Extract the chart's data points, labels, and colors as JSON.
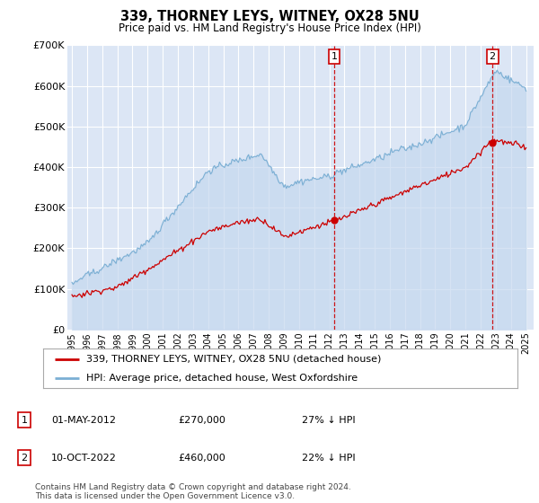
{
  "title": "339, THORNEY LEYS, WITNEY, OX28 5NU",
  "subtitle": "Price paid vs. HM Land Registry's House Price Index (HPI)",
  "legend_line1": "339, THORNEY LEYS, WITNEY, OX28 5NU (detached house)",
  "legend_line2": "HPI: Average price, detached house, West Oxfordshire",
  "annotation1_date": "01-MAY-2012",
  "annotation1_price": "£270,000",
  "annotation1_hpi": "27% ↓ HPI",
  "annotation2_date": "10-OCT-2022",
  "annotation2_price": "£460,000",
  "annotation2_hpi": "22% ↓ HPI",
  "footer": "Contains HM Land Registry data © Crown copyright and database right 2024.\nThis data is licensed under the Open Government Licence v3.0.",
  "ylim": [
    0,
    700000
  ],
  "yticks": [
    0,
    100000,
    200000,
    300000,
    400000,
    500000,
    600000,
    700000
  ],
  "plot_bg_color": "#dce6f5",
  "red_line_color": "#cc0000",
  "blue_line_color": "#7bafd4",
  "blue_fill_color": "#c5d8ee",
  "vline_color": "#cc0000",
  "marker1_year": 2012.33,
  "marker1_y": 270000,
  "marker2_year": 2022.78,
  "marker2_y": 460000,
  "xmin": 1995.0,
  "xmax": 2025.5
}
